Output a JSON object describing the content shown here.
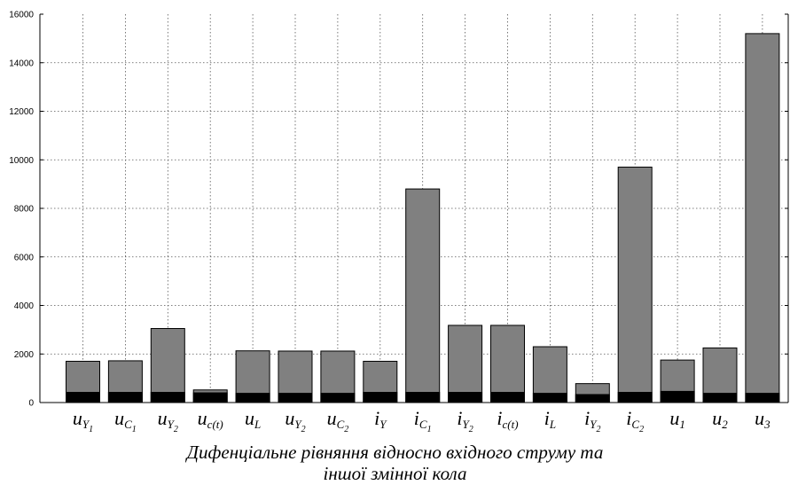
{
  "chart_data": {
    "type": "bar",
    "categories": [
      "u_Y1",
      "u_C1",
      "u_Y2",
      "u_c(t)",
      "u_L",
      "u_Y2",
      "u_C2",
      "i_Y",
      "i_C1",
      "i_Y2",
      "i_c(t)",
      "i_L",
      "i_Y2",
      "i_C2",
      "u_1",
      "u_2",
      "u_3"
    ],
    "category_labels": [
      {
        "base": "u",
        "sub": "Y",
        "subsub": "1"
      },
      {
        "base": "u",
        "sub": "C",
        "subsub": "1"
      },
      {
        "base": "u",
        "sub": "Y",
        "subsub": "2"
      },
      {
        "base": "u",
        "sub": "c(t)",
        "subsub": ""
      },
      {
        "base": "u",
        "sub": "L",
        "subsub": ""
      },
      {
        "base": "u",
        "sub": "Y",
        "subsub": "2"
      },
      {
        "base": "u",
        "sub": "C",
        "subsub": "2"
      },
      {
        "base": "i",
        "sub": "Y",
        "subsub": ""
      },
      {
        "base": "i",
        "sub": "C",
        "subsub": "1"
      },
      {
        "base": "i",
        "sub": "Y",
        "subsub": "2"
      },
      {
        "base": "i",
        "sub": "c(t)",
        "subsub": ""
      },
      {
        "base": "i",
        "sub": "L",
        "subsub": ""
      },
      {
        "base": "i",
        "sub": "Y",
        "subsub": "2"
      },
      {
        "base": "i",
        "sub": "C",
        "subsub": "2"
      },
      {
        "base": "u",
        "sub": "1",
        "subsub": ""
      },
      {
        "base": "u",
        "sub": "2",
        "subsub": ""
      },
      {
        "base": "u",
        "sub": "3",
        "subsub": ""
      }
    ],
    "series": [
      {
        "values": [
          1700,
          1720,
          3050,
          520,
          2130,
          2120,
          2120,
          1700,
          8800,
          3180,
          3180,
          2300,
          780,
          9700,
          1750,
          2250,
          15200
        ],
        "color": "#808080"
      },
      {
        "values": [
          420,
          420,
          420,
          400,
          380,
          380,
          380,
          420,
          420,
          420,
          420,
          380,
          330,
          420,
          460,
          380,
          380
        ],
        "color": "#000000"
      }
    ],
    "yticks": [
      "0",
      "2000",
      "4000",
      "6000",
      "8000",
      "10000",
      "12000",
      "14000",
      "16000"
    ],
    "ylim": [
      0,
      16000
    ],
    "grid": true,
    "title": "Дифенціальне рівняння відносно вхідного струму та",
    "title_line2": "іншої змінної кола"
  }
}
